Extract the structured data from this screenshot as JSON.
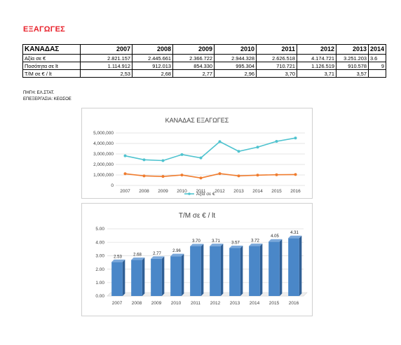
{
  "page_title": "ΕΞΑΓΩΓΕΣ",
  "table": {
    "header_label": "ΚΑΝΑΔΑΣ",
    "years": [
      "2007",
      "2008",
      "2009",
      "2010",
      "2011",
      "2012",
      "2013",
      "2014"
    ],
    "rows": [
      {
        "label": "Αξία σε €",
        "values": [
          "2.821.157",
          "2.445.661",
          "2.366.722",
          "2.944.328",
          "2.626.518",
          "4.174.721",
          "3.251.203",
          "3.6"
        ]
      },
      {
        "label": "Ποσότητα σε lt",
        "values": [
          "1.114.912",
          "912.013",
          "854.330",
          "995.304",
          "710.721",
          "1.126.519",
          "910.578",
          "9"
        ]
      },
      {
        "label": "Τ/Μ σε € / lt",
        "values": [
          "2,53",
          "2,68",
          "2,77",
          "2,96",
          "3,70",
          "3,71",
          "3,57",
          ""
        ]
      }
    ]
  },
  "source_line1": "ΠΗΓΗ: ΕΛ.ΣΤΑΤ.",
  "source_line2": "ΕΠΕΞΕΡΓΑΣΙΑ: ΚΕΟΣΟΕ",
  "colors": {
    "title": "#e8202a",
    "teal": "#4fc3cf",
    "orange": "#f07c2e",
    "bar": "#4a87c8"
  },
  "chart_data": [
    {
      "type": "line",
      "title": "ΚΑΝΑΔΑΣ ΕΞΑΓΩΓΕΣ",
      "x": [
        "2007",
        "2008",
        "2009",
        "2010",
        "2011",
        "2012",
        "2013",
        "2014",
        "2015",
        "2016"
      ],
      "yticks": [
        "0",
        "1,000,000",
        "2,000,000",
        "3,000,000",
        "4,000,000",
        "5,000,000"
      ],
      "ylim": [
        0,
        5000000
      ],
      "grid": true,
      "legend_position": "bottom",
      "series": [
        {
          "name": "Αξία σε €",
          "color": "#4fc3cf",
          "values": [
            2821157,
            2445661,
            2366722,
            2944328,
            2626518,
            4174721,
            3251203,
            3650000,
            4200000,
            4520000
          ]
        },
        {
          "name": "",
          "color": "#f07c2e",
          "values": [
            1114912,
            912013,
            854330,
            995304,
            710721,
            1126519,
            910578,
            980000,
            1020000,
            1040000
          ]
        }
      ]
    },
    {
      "type": "bar",
      "title": "Τ/Μ σε € / lt",
      "categories": [
        "2007",
        "2008",
        "2009",
        "2010",
        "2011",
        "2012",
        "2013",
        "2014",
        "2015",
        "2016"
      ],
      "values": [
        2.53,
        2.68,
        2.77,
        2.96,
        3.7,
        3.71,
        3.57,
        3.72,
        4.05,
        4.31
      ],
      "labels": [
        "2.53",
        "2.68",
        "2.77",
        "2.96",
        "3.70",
        "3.71",
        "3.57",
        "3.72",
        "4.05",
        "4.31"
      ],
      "yticks": [
        "0.00",
        "1.00",
        "2.00",
        "3.00",
        "4.00",
        "5.00"
      ],
      "ylim": [
        0,
        5
      ],
      "grid": true
    }
  ]
}
